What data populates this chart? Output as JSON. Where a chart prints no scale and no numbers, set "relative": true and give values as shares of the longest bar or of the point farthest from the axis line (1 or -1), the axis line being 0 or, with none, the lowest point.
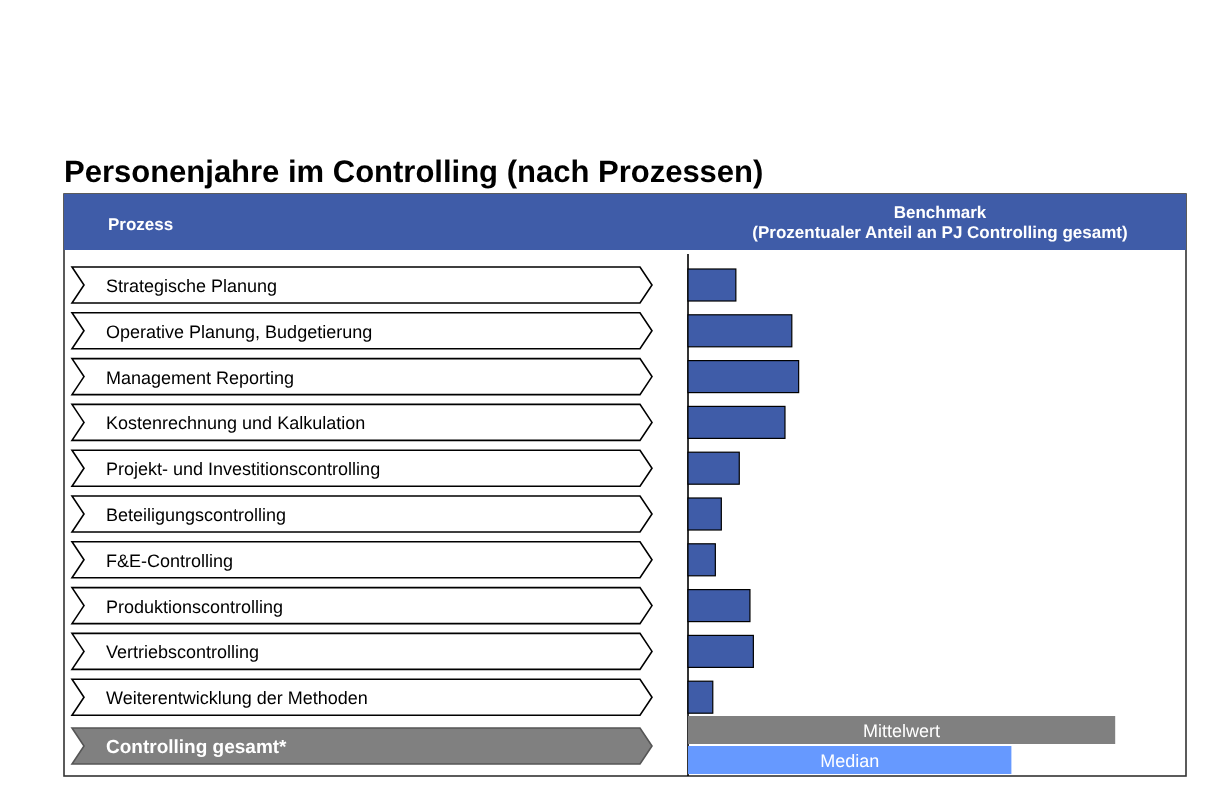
{
  "chart_data": {
    "type": "bar",
    "orientation": "horizontal",
    "relative": true,
    "title": "Personenjahre im Controlling (nach Prozessen)",
    "ylabel": "Prozess",
    "xlabel": "Benchmark\n(Prozentualer Anteil an PJ Controlling gesamt)",
    "categories": [
      "Strategische Planung",
      "Operative Planung, Budgetierung",
      "Management Reporting",
      "Kostenrechnung und Kalkulation",
      "Projekt- und Investitionscontrolling",
      "Beteiligungscontrolling",
      "F&E-Controlling",
      "Produktionscontrolling",
      "Vertriebscontrolling",
      "Weiterentwicklung der Methoden",
      "Controlling gesamt*"
    ],
    "series": [
      {
        "color": "#3f5ca8",
        "values": [
          0.112,
          0.243,
          0.259,
          0.227,
          0.12,
          0.078,
          0.064,
          0.145,
          0.153,
          0.058,
          null
        ]
      },
      {
        "name": "Mittelwert",
        "color": "#808080",
        "values": [
          null,
          null,
          null,
          null,
          null,
          null,
          null,
          null,
          null,
          null,
          1
        ]
      },
      {
        "name": "Median",
        "color": "#6699ff",
        "values": [
          null,
          null,
          null,
          null,
          null,
          null,
          null,
          null,
          null,
          null,
          0.757
        ]
      }
    ]
  }
}
